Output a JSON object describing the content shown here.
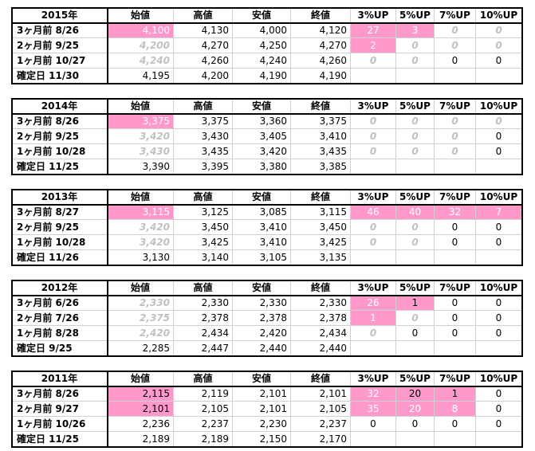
{
  "columns": [
    "始値",
    "高値",
    "安値",
    "終値",
    "3%UP",
    "5%UP",
    "7%UP",
    "10%UP"
  ],
  "blocks": [
    {
      "title": "2015年",
      "rows": [
        {
          "label": "3ヶ月前 8/26",
          "cells": [
            "4,100",
            "4,130",
            "4,000",
            "4,120",
            "27",
            "3",
            "0",
            "0"
          ],
          "styles": [
            "pink",
            "plain",
            "plain",
            "plain",
            "pink",
            "pink",
            "gray",
            "gray"
          ]
        },
        {
          "label": "2ヶ月前 9/25",
          "cells": [
            "4,200",
            "4,270",
            "4,250",
            "4,270",
            "2",
            "0",
            "0",
            "0"
          ],
          "styles": [
            "gray",
            "plain",
            "plain",
            "plain",
            "pink",
            "gray",
            "gray",
            "gray"
          ]
        },
        {
          "label": "1ヶ月前 10/27",
          "cells": [
            "4,240",
            "4,260",
            "4,240",
            "4,260",
            "0",
            "0",
            "0",
            "0"
          ],
          "styles": [
            "gray",
            "plain",
            "plain",
            "plain",
            "gray",
            "gray",
            "plain",
            "plain"
          ]
        },
        {
          "label": "確定日 11/30",
          "cells": [
            "4,195",
            "4,200",
            "4,190",
            "4,190"
          ],
          "styles": [
            "plain",
            "plain",
            "plain",
            "plain"
          ]
        }
      ]
    },
    {
      "title": "2014年",
      "rows": [
        {
          "label": "3ヶ月前 8/26",
          "cells": [
            "3,375",
            "3,375",
            "3,360",
            "3,375",
            "0",
            "0",
            "0",
            "0"
          ],
          "styles": [
            "pink",
            "plain",
            "plain",
            "plain",
            "gray",
            "gray",
            "gray",
            "gray"
          ]
        },
        {
          "label": "2ヶ月前 9/25",
          "cells": [
            "3,420",
            "3,430",
            "3,405",
            "3,410",
            "0",
            "0",
            "0",
            "0"
          ],
          "styles": [
            "gray",
            "plain",
            "plain",
            "plain",
            "gray",
            "gray",
            "gray",
            "plain"
          ]
        },
        {
          "label": "1ヶ月前 10/28",
          "cells": [
            "3,430",
            "3,435",
            "3,420",
            "3,435",
            "0",
            "0",
            "0",
            "0"
          ],
          "styles": [
            "gray",
            "plain",
            "plain",
            "plain",
            "gray",
            "gray",
            "gray",
            "plain"
          ]
        },
        {
          "label": "確定日 11/25",
          "cells": [
            "3,390",
            "3,395",
            "3,380",
            "3,385"
          ],
          "styles": [
            "plain",
            "plain",
            "plain",
            "plain"
          ]
        }
      ]
    },
    {
      "title": "2013年",
      "rows": [
        {
          "label": "3ヶ月前 8/27",
          "cells": [
            "3,115",
            "3,125",
            "3,085",
            "3,115",
            "46",
            "40",
            "32",
            "7"
          ],
          "styles": [
            "pink",
            "plain",
            "plain",
            "plain",
            "pink",
            "pink",
            "pink",
            "pink"
          ]
        },
        {
          "label": "2ヶ月前 9/25",
          "cells": [
            "3,420",
            "3,450",
            "3,410",
            "3,450",
            "0",
            "0",
            "0",
            "0"
          ],
          "styles": [
            "gray",
            "plain",
            "plain",
            "plain",
            "gray",
            "gray",
            "plain",
            "plain"
          ]
        },
        {
          "label": "1ヶ月前 10/28",
          "cells": [
            "3,420",
            "3,425",
            "3,410",
            "3,425",
            "0",
            "0",
            "0",
            "0"
          ],
          "styles": [
            "gray",
            "plain",
            "plain",
            "plain",
            "gray",
            "gray",
            "plain",
            "plain"
          ]
        },
        {
          "label": "確定日 11/26",
          "cells": [
            "3,130",
            "3,140",
            "3,105",
            "3,135"
          ],
          "styles": [
            "plain",
            "plain",
            "plain",
            "plain"
          ]
        }
      ]
    },
    {
      "title": "2012年",
      "rows": [
        {
          "label": "3ヶ月前 6/26",
          "cells": [
            "2,330",
            "2,330",
            "2,330",
            "2,330",
            "26",
            "1",
            "0",
            "0"
          ],
          "styles": [
            "gray",
            "plain",
            "plain",
            "plain",
            "pink",
            "pink-dark",
            "plain",
            "plain"
          ]
        },
        {
          "label": "2ヶ月前 7/26",
          "cells": [
            "2,375",
            "2,378",
            "2,378",
            "2,378",
            "1",
            "0",
            "0",
            "0"
          ],
          "styles": [
            "gray",
            "plain",
            "plain",
            "plain",
            "pink",
            "gray",
            "plain",
            "plain"
          ]
        },
        {
          "label": "1ヶ月前 8/28",
          "cells": [
            "2,420",
            "2,434",
            "2,420",
            "2,434",
            "0",
            "0",
            "0",
            "0"
          ],
          "styles": [
            "gray",
            "plain",
            "plain",
            "plain",
            "gray",
            "plain",
            "plain",
            "plain"
          ]
        },
        {
          "label": "確定日 9/25",
          "cells": [
            "2,285",
            "2,447",
            "2,440",
            "2,440"
          ],
          "styles": [
            "plain",
            "plain",
            "plain",
            "plain"
          ]
        }
      ]
    },
    {
      "title": "2011年",
      "rows": [
        {
          "label": "3ヶ月前 8/26",
          "cells": [
            "2,115",
            "2,119",
            "2,101",
            "2,101",
            "32",
            "20",
            "1",
            "0"
          ],
          "styles": [
            "pink-dark",
            "plain",
            "plain",
            "plain",
            "pink",
            "pink-dark",
            "pink-dark",
            "plain"
          ]
        },
        {
          "label": "2ヶ月前 9/27",
          "cells": [
            "2,101",
            "2,105",
            "2,101",
            "2,105",
            "35",
            "20",
            "8",
            "0"
          ],
          "styles": [
            "pink-dark",
            "plain",
            "plain",
            "plain",
            "pink",
            "pink",
            "pink",
            "plain"
          ]
        },
        {
          "label": "1ヶ月前 10/26",
          "cells": [
            "2,236",
            "2,237",
            "2,230",
            "2,237",
            "0",
            "0",
            "0",
            "0"
          ],
          "styles": [
            "plain",
            "plain",
            "plain",
            "plain",
            "plain",
            "plain",
            "plain",
            "plain"
          ]
        },
        {
          "label": "確定日 11/25",
          "cells": [
            "2,189",
            "2,189",
            "2,150",
            "2,170"
          ],
          "styles": [
            "plain",
            "plain",
            "plain",
            "plain"
          ]
        }
      ]
    }
  ]
}
